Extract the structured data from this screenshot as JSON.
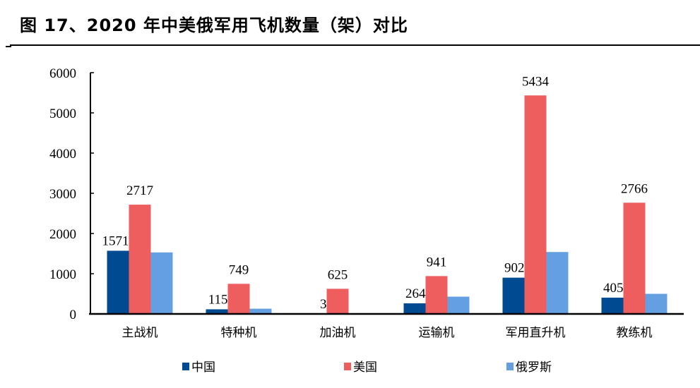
{
  "title": "图 17、2020 年中美俄军用飞机数量（架）对比",
  "chart_data": {
    "type": "bar",
    "title": "图 17、2020 年中美俄军用飞机数量（架）对比",
    "xlabel": "",
    "ylabel": "",
    "ylim": [
      0,
      6000
    ],
    "yticks": [
      0,
      1000,
      2000,
      3000,
      4000,
      5000,
      6000
    ],
    "grid": false,
    "legend_position": "bottom",
    "categories": [
      "主战机",
      "特种机",
      "加油机",
      "运输机",
      "军用直升机",
      "教练机"
    ],
    "series": [
      {
        "name": "中国",
        "color": "#004a91",
        "values": [
          1571,
          115,
          3,
          264,
          902,
          405
        ],
        "labeled": true
      },
      {
        "name": "美国",
        "color": "#ee5e5f",
        "values": [
          2717,
          749,
          625,
          941,
          5434,
          2766
        ],
        "labeled": true
      },
      {
        "name": "俄罗斯",
        "color": "#64a0e1",
        "values": [
          1530,
          130,
          0,
          430,
          1540,
          500
        ],
        "labeled": false
      }
    ]
  }
}
